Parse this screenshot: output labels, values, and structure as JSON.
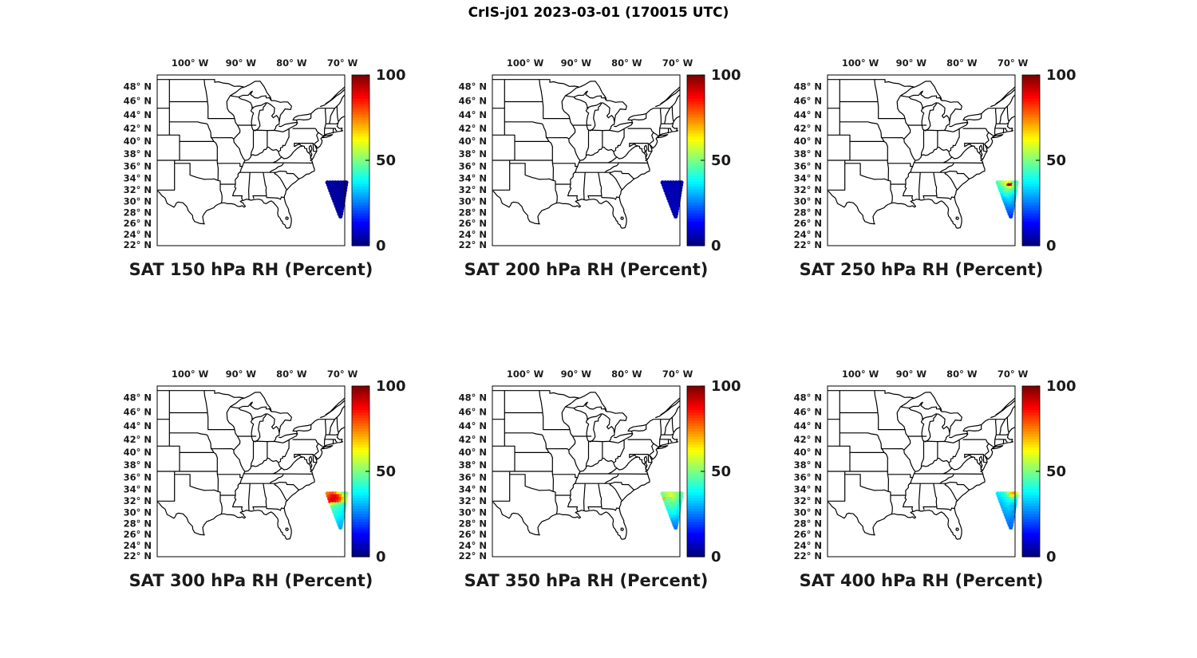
{
  "figure_title": "CrIS-j01 2023-03-01 (170015 UTC)",
  "chart_data": {
    "type": "scatter",
    "description": "Six map panels of satellite relative humidity observations over the eastern United States",
    "axes": {
      "projection": "mercator",
      "lon_range": [
        -106.45,
        -69.55
      ],
      "lat_range": [
        21.9,
        49.6
      ],
      "lon_ticks": [
        {
          "value": -100,
          "label": "100° W"
        },
        {
          "value": -90,
          "label": "90° W"
        },
        {
          "value": -80,
          "label": "80° W"
        },
        {
          "value": -70,
          "label": "70° W"
        }
      ],
      "lat_ticks": [
        {
          "value": 48,
          "label": "48° N"
        },
        {
          "value": 46,
          "label": "46° N"
        },
        {
          "value": 44,
          "label": "44° N"
        },
        {
          "value": 42,
          "label": "42° N"
        },
        {
          "value": 40,
          "label": "40° N"
        },
        {
          "value": 38,
          "label": "38° N"
        },
        {
          "value": 36,
          "label": "36° N"
        },
        {
          "value": 34,
          "label": "34° N"
        },
        {
          "value": 32,
          "label": "32° N"
        },
        {
          "value": 30,
          "label": "30° N"
        },
        {
          "value": 28,
          "label": "28° N"
        },
        {
          "value": 26,
          "label": "26° N"
        },
        {
          "value": 24,
          "label": "24° N"
        },
        {
          "value": 22,
          "label": "22° N"
        }
      ]
    },
    "colorbar": {
      "colormap": "jet",
      "min": 0,
      "max": 100,
      "ticks": [
        100,
        50,
        0
      ]
    },
    "swath_rows": [
      {
        "lat": 33.3,
        "lon0": -72.95,
        "lon1": -69.25
      },
      {
        "lat": 32.84,
        "lon0": -72.76,
        "lon1": -69.33
      },
      {
        "lat": 32.38,
        "lon0": -72.56,
        "lon1": -69.42
      },
      {
        "lat": 31.92,
        "lon0": -72.37,
        "lon1": -69.5
      },
      {
        "lat": 31.46,
        "lon0": -72.17,
        "lon1": -69.59
      },
      {
        "lat": 31.0,
        "lon0": -71.98,
        "lon1": -69.67
      },
      {
        "lat": 30.54,
        "lon0": -71.78,
        "lon1": -69.76
      },
      {
        "lat": 30.08,
        "lon0": -71.59,
        "lon1": -69.84
      },
      {
        "lat": 29.62,
        "lon0": -71.39,
        "lon1": -69.93
      },
      {
        "lat": 29.16,
        "lon0": -71.2,
        "lon1": -70.01
      },
      {
        "lat": 28.7,
        "lon0": -71.0,
        "lon1": -70.1
      },
      {
        "lat": 28.24,
        "lon0": -70.81,
        "lon1": -70.18
      },
      {
        "lat": 27.78,
        "lon0": -70.61,
        "lon1": -70.27
      },
      {
        "lat": 27.32,
        "lon0": -70.4,
        "lon1": -70.35
      }
    ],
    "panels": [
      {
        "level_hPa": 150,
        "title": "SAT 150 hPa RH (Percent)",
        "rh_values": [
          [
            3,
            4,
            3,
            2,
            3,
            4,
            3,
            3
          ],
          [
            3,
            3,
            4,
            3,
            2,
            3,
            4,
            3
          ],
          [
            4,
            3,
            3,
            2,
            3,
            4,
            3
          ],
          [
            3,
            4,
            3,
            3,
            2,
            3,
            4
          ],
          [
            3,
            3,
            4,
            3,
            3,
            2
          ],
          [
            2,
            3,
            3,
            4,
            3,
            3
          ],
          [
            3,
            2,
            3,
            3,
            4
          ],
          [
            3,
            3,
            2,
            3,
            3
          ],
          [
            4,
            3,
            3,
            2
          ],
          [
            3,
            4,
            3,
            3
          ],
          [
            3,
            3,
            4
          ],
          [
            2,
            3,
            3
          ],
          [
            3,
            3
          ],
          [
            3
          ]
        ]
      },
      {
        "level_hPa": 200,
        "title": "SAT 200 hPa RH (Percent)",
        "rh_values": [
          [
            5,
            6,
            5,
            4,
            5,
            6,
            5,
            5
          ],
          [
            5,
            5,
            6,
            5,
            4,
            5,
            6,
            5
          ],
          [
            6,
            5,
            5,
            4,
            5,
            6,
            5
          ],
          [
            5,
            6,
            5,
            5,
            4,
            5,
            6
          ],
          [
            5,
            5,
            6,
            5,
            5,
            4
          ],
          [
            4,
            5,
            5,
            6,
            5,
            5
          ],
          [
            5,
            4,
            5,
            5,
            6
          ],
          [
            5,
            5,
            4,
            5,
            5
          ],
          [
            6,
            5,
            5,
            4
          ],
          [
            5,
            6,
            5,
            5
          ],
          [
            5,
            5,
            6
          ],
          [
            4,
            5,
            5
          ],
          [
            5,
            5
          ],
          [
            5
          ]
        ]
      },
      {
        "level_hPa": 250,
        "title": "SAT 250 hPa RH (Percent)",
        "rh_values": [
          [
            45,
            50,
            55,
            60,
            62,
            55,
            48,
            44
          ],
          [
            44,
            48,
            52,
            58,
            96,
            97,
            52,
            45
          ],
          [
            42,
            46,
            50,
            55,
            60,
            52,
            48
          ],
          [
            40,
            44,
            48,
            50,
            46,
            44,
            42
          ],
          [
            38,
            42,
            45,
            44,
            40,
            38
          ],
          [
            35,
            38,
            40,
            38,
            36,
            34
          ],
          [
            32,
            34,
            36,
            34,
            32
          ],
          [
            30,
            32,
            33,
            32,
            30
          ],
          [
            28,
            30,
            30,
            28
          ],
          [
            26,
            28,
            27,
            26
          ],
          [
            24,
            25,
            24
          ],
          [
            22,
            23,
            22
          ],
          [
            20,
            21
          ],
          [
            18
          ]
        ]
      },
      {
        "level_hPa": 300,
        "title": "SAT 300 hPa RH (Percent)",
        "rh_values": [
          [
            75,
            78,
            80,
            76,
            65,
            55,
            50,
            48
          ],
          [
            80,
            85,
            88,
            90,
            85,
            75,
            60,
            52
          ],
          [
            85,
            90,
            92,
            88,
            82,
            70,
            55
          ],
          [
            88,
            90,
            88,
            84,
            78,
            65,
            55
          ],
          [
            60,
            55,
            50,
            48,
            45,
            44
          ],
          [
            48,
            46,
            45,
            44,
            42,
            40
          ],
          [
            44,
            43,
            42,
            40,
            38
          ],
          [
            42,
            41,
            40,
            38,
            36
          ],
          [
            40,
            39,
            38,
            36
          ],
          [
            38,
            37,
            36,
            35
          ],
          [
            36,
            35,
            34
          ],
          [
            34,
            33,
            32
          ],
          [
            32,
            31
          ],
          [
            30
          ]
        ]
      },
      {
        "level_hPa": 350,
        "title": "SAT 350 hPa RH (Percent)",
        "rh_values": [
          [
            50,
            52,
            55,
            58,
            55,
            52,
            50,
            48
          ],
          [
            48,
            52,
            55,
            60,
            58,
            52,
            48,
            45
          ],
          [
            70,
            50,
            48,
            52,
            55,
            50,
            46
          ],
          [
            46,
            48,
            50,
            52,
            48,
            45,
            42
          ],
          [
            44,
            46,
            48,
            46,
            44,
            42
          ],
          [
            42,
            44,
            45,
            44,
            42,
            40
          ],
          [
            40,
            42,
            42,
            40,
            38
          ],
          [
            38,
            40,
            40,
            38,
            36
          ],
          [
            36,
            38,
            37,
            35
          ],
          [
            34,
            35,
            34,
            32
          ],
          [
            30,
            32,
            30
          ],
          [
            28,
            29,
            28
          ],
          [
            26,
            27
          ],
          [
            24
          ]
        ]
      },
      {
        "level_hPa": 400,
        "title": "SAT 400 hPa RH (Percent)",
        "rh_values": [
          [
            36,
            38,
            40,
            45,
            55,
            68,
            72,
            60
          ],
          [
            34,
            36,
            38,
            42,
            48,
            58,
            65,
            50
          ],
          [
            33,
            35,
            37,
            40,
            44,
            46,
            42
          ],
          [
            32,
            34,
            36,
            38,
            40,
            38,
            36
          ],
          [
            31,
            33,
            35,
            36,
            34,
            32
          ],
          [
            30,
            32,
            34,
            33,
            32,
            30
          ],
          [
            30,
            31,
            32,
            31,
            30
          ],
          [
            29,
            30,
            31,
            30,
            28
          ],
          [
            28,
            29,
            29,
            28
          ],
          [
            27,
            28,
            27,
            26
          ],
          [
            26,
            26,
            25
          ],
          [
            25,
            25,
            24
          ],
          [
            24,
            24
          ],
          [
            23
          ]
        ]
      }
    ]
  }
}
